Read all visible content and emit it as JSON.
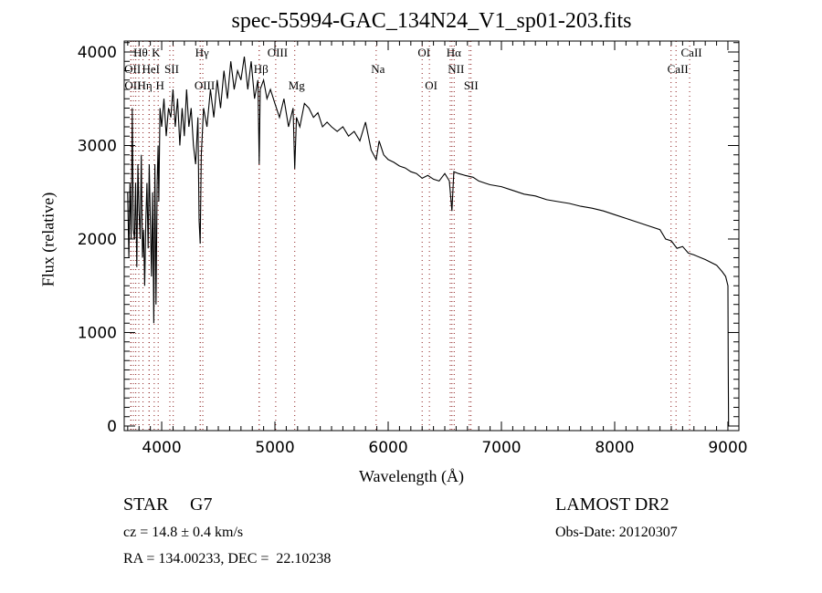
{
  "chart_data": {
    "type": "line",
    "title": "spec-55994-GAC_134N24_V1_sp01-203.fits",
    "xlabel": "Wavelength (Å)",
    "ylabel": "Flux (relative)",
    "xlim": [
      3669,
      9097
    ],
    "ylim": [
      -49,
      4117
    ],
    "xticks": [
      4000,
      5000,
      6000,
      7000,
      8000,
      9000
    ],
    "yticks": [
      0,
      1000,
      2000,
      3000,
      4000
    ],
    "grid": false,
    "series": [
      {
        "name": "flux",
        "x": [
          3700,
          3710,
          3720,
          3730,
          3740,
          3750,
          3760,
          3770,
          3780,
          3790,
          3800,
          3810,
          3820,
          3830,
          3840,
          3850,
          3860,
          3870,
          3880,
          3890,
          3900,
          3910,
          3920,
          3930,
          3935,
          3940,
          3950,
          3960,
          3968,
          3975,
          3985,
          4000,
          4020,
          4040,
          4060,
          4080,
          4100,
          4120,
          4140,
          4160,
          4180,
          4200,
          4220,
          4240,
          4260,
          4280,
          4300,
          4320,
          4330,
          4340,
          4350,
          4370,
          4400,
          4430,
          4460,
          4490,
          4520,
          4550,
          4580,
          4610,
          4640,
          4670,
          4700,
          4730,
          4760,
          4790,
          4820,
          4850,
          4861,
          4870,
          4900,
          4930,
          4960,
          5000,
          5040,
          5080,
          5120,
          5160,
          5175,
          5190,
          5220,
          5260,
          5300,
          5340,
          5380,
          5420,
          5460,
          5500,
          5550,
          5600,
          5650,
          5700,
          5750,
          5800,
          5850,
          5894,
          5920,
          5960,
          6000,
          6050,
          6100,
          6150,
          6200,
          6250,
          6300,
          6350,
          6400,
          6450,
          6500,
          6540,
          6563,
          6580,
          6620,
          6680,
          6750,
          6800,
          6850,
          6900,
          7000,
          7100,
          7200,
          7300,
          7400,
          7500,
          7600,
          7700,
          7800,
          7900,
          8000,
          8100,
          8200,
          8300,
          8400,
          8450,
          8500,
          8550,
          8600,
          8650,
          8700,
          8800,
          8900,
          8950,
          8980,
          9000,
          9003,
          9006
        ],
        "y": [
          2500,
          1800,
          2600,
          2000,
          3400,
          2100,
          2000,
          2600,
          1700,
          2800,
          2300,
          2000,
          2900,
          1800,
          2100,
          1500,
          2200,
          2600,
          1900,
          2800,
          2200,
          1600,
          2500,
          1100,
          2000,
          2800,
          1300,
          2600,
          3000,
          2400,
          3400,
          3200,
          3500,
          3100,
          3400,
          3300,
          3600,
          3200,
          3500,
          3000,
          3400,
          3100,
          3600,
          3200,
          3400,
          3000,
          2800,
          3300,
          2200,
          1950,
          2900,
          3400,
          3200,
          3600,
          3300,
          3700,
          3400,
          3800,
          3500,
          3900,
          3600,
          3800,
          3700,
          3950,
          3600,
          3900,
          3500,
          3700,
          2800,
          3600,
          3700,
          3500,
          3600,
          3450,
          3300,
          3500,
          3200,
          3400,
          2750,
          3300,
          3200,
          3450,
          3400,
          3300,
          3350,
          3200,
          3250,
          3200,
          3150,
          3200,
          3100,
          3150,
          3050,
          3250,
          2950,
          2850,
          3050,
          2900,
          2850,
          2820,
          2780,
          2760,
          2720,
          2700,
          2650,
          2680,
          2640,
          2620,
          2700,
          2620,
          2300,
          2720,
          2700,
          2680,
          2660,
          2620,
          2600,
          2580,
          2560,
          2520,
          2480,
          2460,
          2420,
          2400,
          2380,
          2350,
          2330,
          2300,
          2260,
          2220,
          2180,
          2140,
          2100,
          2000,
          1980,
          1900,
          1920,
          1850,
          1830,
          1780,
          1720,
          1650,
          1600,
          1500,
          700,
          0
        ]
      }
    ],
    "line_markers": [
      {
        "label": "Hθ",
        "wavelength": 3798,
        "row": 1
      },
      {
        "label": "K",
        "wavelength": 3934,
        "row": 1
      },
      {
        "label": "Hγ",
        "wavelength": 4340,
        "row": 1
      },
      {
        "label": "OIII",
        "wavelength": 5007,
        "row": 1
      },
      {
        "label": "OI",
        "wavelength": 6300,
        "row": 1
      },
      {
        "label": "Hα",
        "wavelength": 6563,
        "row": 1
      },
      {
        "label": "CaII",
        "wavelength": 8662,
        "row": 1
      },
      {
        "label": "OII",
        "wavelength": 3727,
        "row": 2
      },
      {
        "label": "HeI",
        "wavelength": 3889,
        "row": 2
      },
      {
        "label": "SII",
        "wavelength": 4072,
        "row": 2
      },
      {
        "label": "Hβ",
        "wavelength": 4861,
        "row": 2
      },
      {
        "label": "Na",
        "wavelength": 5894,
        "row": 2
      },
      {
        "label": "NII",
        "wavelength": 6583,
        "row": 2
      },
      {
        "label": "CaII",
        "wavelength": 8542,
        "row": 2
      },
      {
        "label": "OII",
        "wavelength": 3729,
        "row": 3
      },
      {
        "label": "Hη",
        "wavelength": 3835,
        "row": 3
      },
      {
        "label": "H",
        "wavelength": 3969,
        "row": 3
      },
      {
        "label": "OIII",
        "wavelength": 4363,
        "row": 3
      },
      {
        "label": "Mg",
        "wavelength": 5175,
        "row": 3
      },
      {
        "label": "OI",
        "wavelength": 6364,
        "row": 3
      },
      {
        "label": "SII",
        "wavelength": 6716,
        "row": 3
      }
    ],
    "extra_marker_wavelengths": [
      3750,
      3771,
      3889,
      4102,
      4340,
      4861,
      6548,
      6731,
      8498
    ],
    "marker_color": "#8b1a1a"
  },
  "info": {
    "object_type": "STAR",
    "subclass": "G7",
    "redshift": "cz = 14.8 ± 0.4 km/s",
    "coords": "RA = 134.00233, DEC =  22.10238",
    "survey": "LAMOST DR2",
    "obs_date": "Obs-Date: 20120307"
  }
}
